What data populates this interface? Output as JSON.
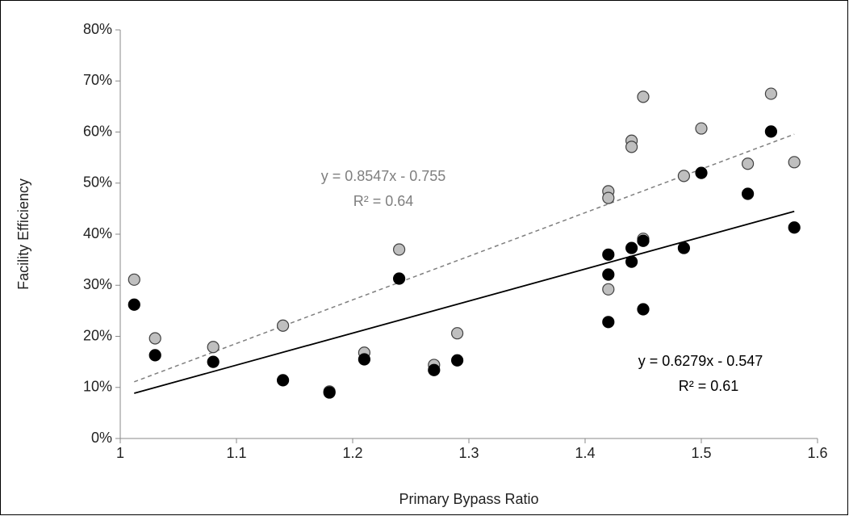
{
  "chart_data": {
    "type": "scatter",
    "xlabel": "Primary Bypass Ratio",
    "ylabel": "Facility Efficiency",
    "xlim": [
      1,
      1.6
    ],
    "xticks": [
      1,
      1.1,
      1.2,
      1.3,
      1.4,
      1.5,
      1.6
    ],
    "ylim": [
      0,
      80
    ],
    "yticks": [
      {
        "value": 0,
        "label": "0%"
      },
      {
        "value": 10,
        "label": "10%"
      },
      {
        "value": 20,
        "label": "20%"
      },
      {
        "value": 30,
        "label": "30%"
      },
      {
        "value": 40,
        "label": "40%"
      },
      {
        "value": 50,
        "label": "50%"
      },
      {
        "value": 60,
        "label": "60%"
      },
      {
        "value": 70,
        "label": "70%"
      },
      {
        "value": 80,
        "label": "80%"
      }
    ],
    "grid": false,
    "series": [
      {
        "color": "#bfbfbf",
        "trendline": "dashed",
        "trendline_color": "#7f7f7f",
        "annotation": [
          "y = 0.8547x - 0.755",
          "R² = 0.64"
        ],
        "x": [
          1.012,
          1.03,
          1.08,
          1.14,
          1.18,
          1.21,
          1.24,
          1.27,
          1.29,
          1.42,
          1.42,
          1.42,
          1.44,
          1.44,
          1.45,
          1.45,
          1.485,
          1.5,
          1.54,
          1.56,
          1.58
        ],
        "values": [
          31.1,
          19.6,
          17.9,
          22.1,
          9.2,
          16.8,
          37.0,
          14.4,
          20.6,
          48.4,
          47.1,
          29.2,
          58.3,
          57.1,
          66.9,
          39.1,
          51.4,
          60.7,
          53.8,
          67.5,
          54.1
        ]
      },
      {
        "color": "#000000",
        "trendline": "solid",
        "trendline_color": "#000000",
        "annotation": [
          "y = 0.6279x - 0.547",
          "R² = 0.61"
        ],
        "x": [
          1.012,
          1.03,
          1.08,
          1.14,
          1.18,
          1.21,
          1.24,
          1.27,
          1.29,
          1.42,
          1.42,
          1.42,
          1.44,
          1.44,
          1.45,
          1.45,
          1.485,
          1.5,
          1.54,
          1.56,
          1.58
        ],
        "values": [
          26.2,
          16.3,
          15.0,
          11.4,
          9.0,
          15.5,
          31.3,
          13.4,
          15.3,
          36.0,
          32.1,
          22.8,
          37.3,
          34.6,
          38.7,
          25.3,
          37.3,
          52.0,
          47.9,
          60.1,
          41.3
        ]
      }
    ]
  }
}
